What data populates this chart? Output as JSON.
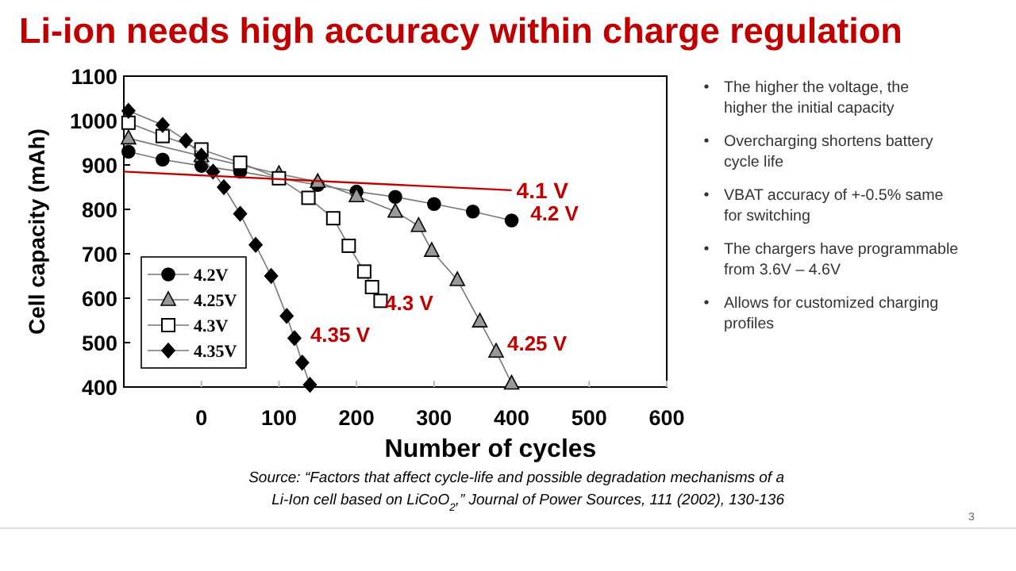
{
  "chart_data": {
    "type": "line",
    "title": "Li-ion needs high accuracy within charge regulation",
    "xlabel": "Number of cycles",
    "ylabel": "Cell capacity (mAh)",
    "xlim": [
      -100,
      600
    ],
    "xticks": [
      0,
      100,
      200,
      300,
      400,
      500,
      600
    ],
    "ylim": [
      400,
      1100
    ],
    "yticks": [
      400,
      500,
      600,
      700,
      800,
      900,
      1000,
      1100
    ],
    "legend": "bottom left",
    "grid": false,
    "series": [
      {
        "name": "4.2V",
        "color": "#000000",
        "marker": "circle",
        "x": [
          -94,
          -50,
          0,
          50,
          100,
          150,
          200,
          250,
          300,
          350,
          400
        ],
        "values": [
          930,
          912,
          898,
          885,
          870,
          855,
          840,
          828,
          812,
          795,
          775
        ]
      },
      {
        "name": "4.25V",
        "color": "#999999",
        "marker": "triangle",
        "x": [
          -94,
          0,
          100,
          150,
          200,
          250,
          280,
          297,
          330,
          359,
          380,
          400
        ],
        "values": [
          960,
          920,
          880,
          862,
          830,
          795,
          763,
          707,
          641,
          548,
          480,
          408
        ]
      },
      {
        "name": "4.3V",
        "color": "#ffffff",
        "marker": "square",
        "x": [
          -94,
          -50,
          0,
          50,
          100,
          138,
          170,
          190,
          210,
          220,
          231
        ],
        "values": [
          995,
          965,
          935,
          905,
          870,
          826,
          780,
          718,
          660,
          625,
          594
        ]
      },
      {
        "name": "4.35V",
        "color": "#000000",
        "marker": "diamond",
        "x": [
          -94,
          -50,
          -20,
          0,
          15,
          29,
          50,
          70,
          90,
          110,
          120,
          130,
          140
        ],
        "values": [
          1022,
          990,
          955,
          921,
          885,
          850,
          790,
          720,
          650,
          560,
          510,
          455,
          405
        ]
      },
      {
        "name": "4.1 V",
        "color": "#c00000",
        "marker": "none",
        "x": [
          -100,
          400
        ],
        "values": [
          885,
          843
        ]
      }
    ],
    "annotations": [
      "The higher the voltage, the higher the initial capacity",
      "Overcharging shortens battery cycle life",
      "VBAT accuracy of +-0.5% same for switching",
      "The chargers have programmable from 3.6V – 4.6V",
      "Allows for customized charging profiles",
      "Source: “Factors that affect cycle-life and possible degradation mechanisms of a Li-Ion cell based on LiCoO$_{2}$,” Journal of Power Sources, 111 (2002), 130-136",
      "3",
      "4.2 V",
      "4.25 V",
      "4.3 V",
      "4.35 V"
    ]
  }
}
